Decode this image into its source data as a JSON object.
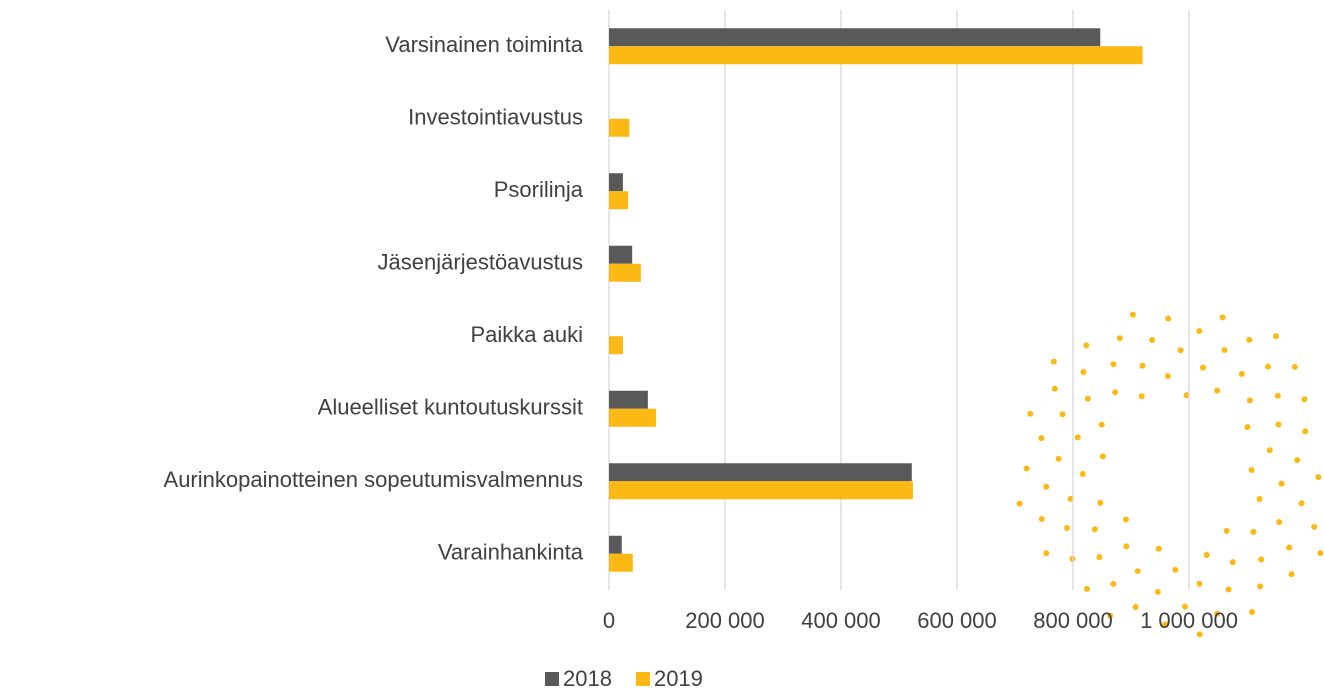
{
  "chart_data": {
    "type": "bar",
    "orientation": "horizontal",
    "categories": [
      "Varsinainen toiminta",
      "Investointiavustus",
      "Psorilinja",
      "Jäsenjärjestöavustus",
      "Paikka auki",
      "Alueelliset kuntoutuskurssit",
      "Aurinkopainotteinen sopeutumisvalmennus",
      "Varainhankinta"
    ],
    "series": [
      {
        "name": "2018",
        "color": "#595959",
        "values": [
          847000,
          null,
          24000,
          40000,
          null,
          67000,
          522000,
          22000
        ]
      },
      {
        "name": "2019",
        "color": "#FDB913",
        "values": [
          920000,
          35000,
          33000,
          55000,
          24000,
          81000,
          524000,
          41000
        ]
      }
    ],
    "xlim": [
      0,
      1000000
    ],
    "xticks": [
      0,
      {
        "value": 200000,
        "label": "200 000"
      },
      {
        "value": 400000,
        "label": "400 000"
      },
      {
        "value": 600000,
        "label": "600 000"
      },
      {
        "value": 800000,
        "label": "800 000"
      },
      {
        "value": 1000000,
        "label": "1 000 000"
      }
    ],
    "grid": true,
    "legend": "bottom"
  }
}
